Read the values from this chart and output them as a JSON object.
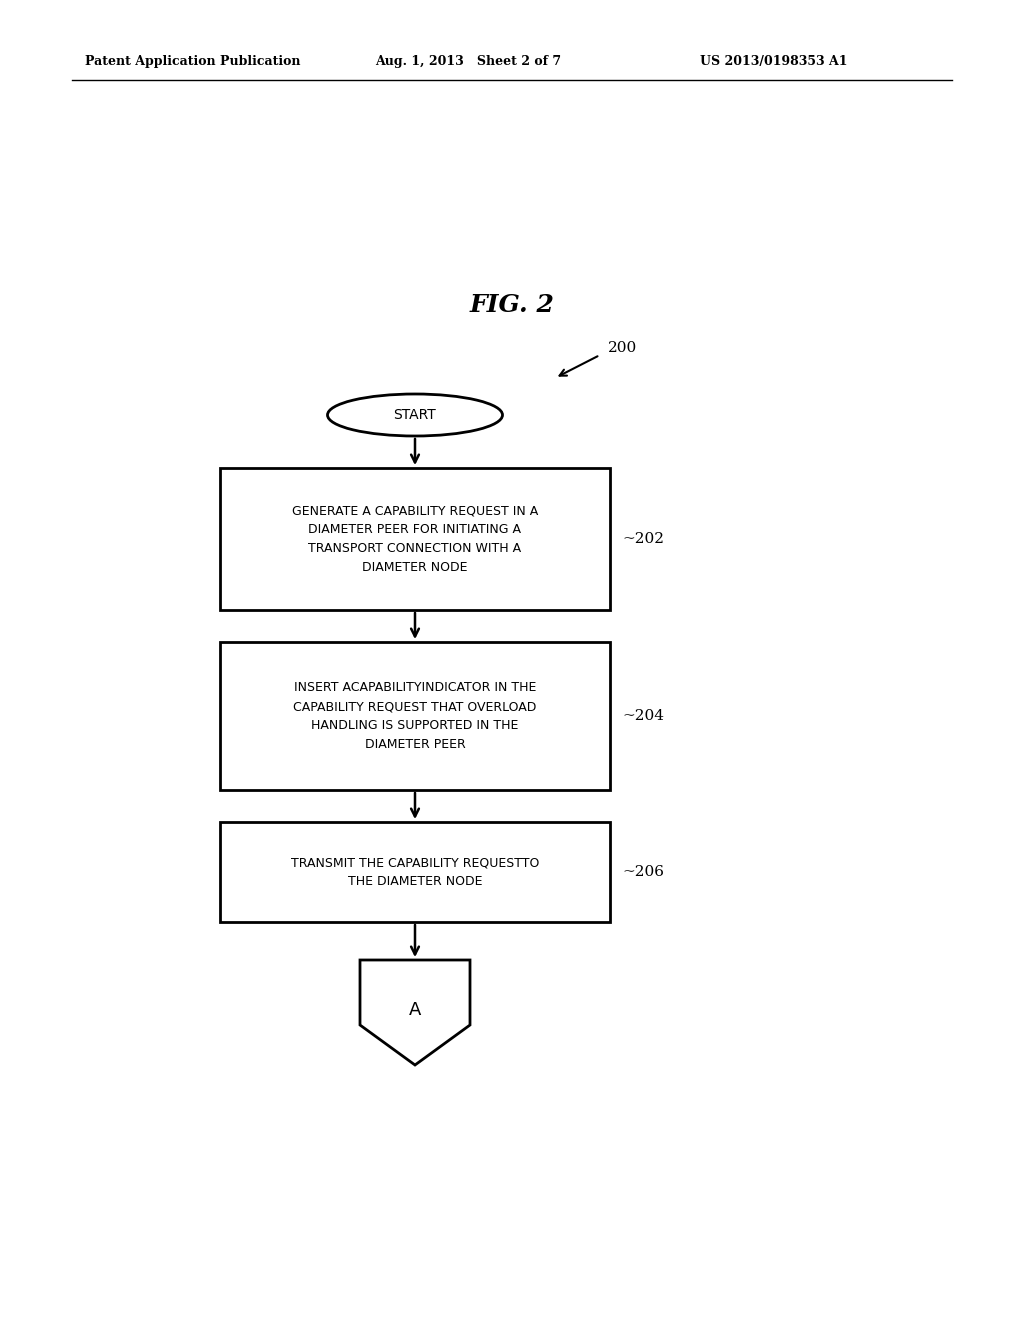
{
  "title": "FIG. 2",
  "header_left": "Patent Application Publication",
  "header_center": "Aug. 1, 2013   Sheet 2 of 7",
  "header_right": "US 2013/0198353 A1",
  "fig_number": "200",
  "start_label": "START",
  "box1_text": "GENERATE A CAPABILITY REQUEST IN A\nDIAMETER PEER FOR INITIATING A\nTRANSPORT CONNECTION WITH A\nDIAMETER NODE",
  "box1_label": "202",
  "box2_text": "INSERT ACAPABILITYINDICATOR IN THE\nCAPABILITY REQUEST THAT OVERLOAD\nHANDLING IS SUPPORTED IN THE\nDIAMETER PEER",
  "box2_label": "204",
  "box3_text": "TRANSMIT THE CAPABILITY REQUESTTO\nTHE DIAMETER NODE",
  "box3_label": "206",
  "connector_label": "A",
  "bg_color": "#ffffff",
  "box_edge_color": "#000000",
  "text_color": "#000000",
  "arrow_color": "#000000"
}
